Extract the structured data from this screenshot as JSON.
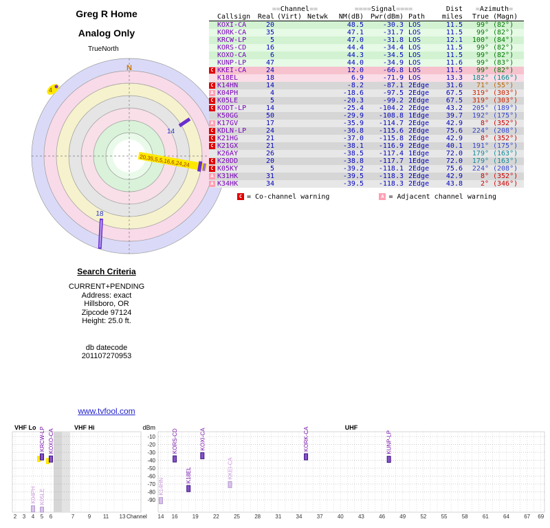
{
  "header": {
    "title_line1": "Greg R Home",
    "title_line2": "Analog Only",
    "north_label": "TrueNorth"
  },
  "table": {
    "h1": {
      "channel": {
        "pre": "==",
        "label": "Channel",
        "post": "=="
      },
      "signal": {
        "pre": "====",
        "label": "Signal",
        "post": "===="
      },
      "dist": {
        "label": "Dist"
      },
      "azimuth": {
        "pre": "=",
        "label": "Azimuth",
        "post": "="
      }
    },
    "h2": {
      "callsign": "Callsign",
      "real": "Real",
      "virt": "(Virt)",
      "netwk": "Netwk",
      "nm": "NM(dB)",
      "pwr": "Pwr(dBm)",
      "path": "Path",
      "miles": "miles",
      "true": "True",
      "magn": "(Magn)"
    },
    "rows": [
      {
        "marker": "",
        "callsign": "KOXI-CA",
        "real": "20",
        "nm": "48.5",
        "pwr": "-30.3",
        "path": "LOS",
        "miles": "11.5",
        "az_true": "99°",
        "az_magn": "(82°)",
        "tone": "tone-g1",
        "az_color": "#007700"
      },
      {
        "marker": "",
        "callsign": "KORK-CA",
        "real": "35",
        "nm": "47.1",
        "pwr": "-31.7",
        "path": "LOS",
        "miles": "11.5",
        "az_true": "99°",
        "az_magn": "(82°)",
        "tone": "tone-g2",
        "az_color": "#007700"
      },
      {
        "marker": "",
        "callsign": "KRCW-LP",
        "real": "5",
        "nm": "47.0",
        "pwr": "-31.8",
        "path": "LOS",
        "miles": "12.1",
        "az_true": "100°",
        "az_magn": "(84°)",
        "tone": "tone-g1",
        "az_color": "#007700"
      },
      {
        "marker": "",
        "callsign": "KORS-CD",
        "real": "16",
        "nm": "44.4",
        "pwr": "-34.4",
        "path": "LOS",
        "miles": "11.5",
        "az_true": "99°",
        "az_magn": "(82°)",
        "tone": "tone-g2",
        "az_color": "#007700"
      },
      {
        "marker": "",
        "callsign": "KOXO-CA",
        "real": "6",
        "nm": "44.3",
        "pwr": "-34.5",
        "path": "LOS",
        "miles": "11.5",
        "az_true": "99°",
        "az_magn": "(82°)",
        "tone": "tone-g1",
        "az_color": "#007700"
      },
      {
        "marker": "",
        "callsign": "KUNP-LP",
        "real": "47",
        "nm": "44.0",
        "pwr": "-34.9",
        "path": "LOS",
        "miles": "11.6",
        "az_true": "99°",
        "az_magn": "(83°)",
        "tone": "tone-g2",
        "az_color": "#007700"
      },
      {
        "marker": "C",
        "callsign": "KKEI-CA",
        "real": "24",
        "nm": "12.0",
        "pwr": "-66.8",
        "path": "LOS",
        "miles": "11.5",
        "az_true": "99°",
        "az_magn": "(82°)",
        "tone": "tone-p1",
        "az_color": "#007700"
      },
      {
        "marker": "",
        "callsign": "K18EL",
        "real": "18",
        "nm": "6.9",
        "pwr": "-71.9",
        "path": "LOS",
        "miles": "13.3",
        "az_true": "182°",
        "az_magn": "(166°)",
        "tone": "tone-p2",
        "az_color": "#008888"
      },
      {
        "marker": "C",
        "callsign": "K14HN",
        "real": "14",
        "nm": "-8.2",
        "pwr": "-87.1",
        "path": "2Edge",
        "miles": "31.6",
        "az_true": "71°",
        "az_magn": "(55°)",
        "tone": "tone-k1",
        "az_color": "#bb6600"
      },
      {
        "marker": "A",
        "callsign": "K04PH",
        "real": "4",
        "nm": "-18.6",
        "pwr": "-97.5",
        "path": "2Edge",
        "miles": "67.5",
        "az_true": "319°",
        "az_magn": "(303°)",
        "tone": "tone-k2",
        "az_color": "#cc2200"
      },
      {
        "marker": "C",
        "callsign": "K05LE",
        "real": "5",
        "nm": "-20.3",
        "pwr": "-99.2",
        "path": "2Edge",
        "miles": "67.5",
        "az_true": "319°",
        "az_magn": "(303°)",
        "tone": "tone-k1",
        "az_color": "#cc2200"
      },
      {
        "marker": "C",
        "callsign": "KODT-LP",
        "real": "14",
        "nm": "-25.4",
        "pwr": "-104.2",
        "path": "2Edge",
        "miles": "43.2",
        "az_true": "205°",
        "az_magn": "(189°)",
        "tone": "tone-k2",
        "az_color": "#3344cc"
      },
      {
        "marker": "",
        "callsign": "K50GG",
        "real": "50",
        "nm": "-29.9",
        "pwr": "-108.8",
        "path": "1Edge",
        "miles": "39.7",
        "az_true": "192°",
        "az_magn": "(175°)",
        "tone": "tone-k1",
        "az_color": "#3344cc"
      },
      {
        "marker": "A",
        "callsign": "K17GV",
        "real": "17",
        "nm": "-35.9",
        "pwr": "-114.7",
        "path": "2Edge",
        "miles": "42.9",
        "az_true": "8°",
        "az_magn": "(352°)",
        "tone": "tone-k2",
        "az_color": "#cc0000"
      },
      {
        "marker": "C",
        "callsign": "KDLN-LP",
        "real": "24",
        "nm": "-36.8",
        "pwr": "-115.6",
        "path": "2Edge",
        "miles": "75.6",
        "az_true": "224°",
        "az_magn": "(208°)",
        "tone": "tone-k1",
        "az_color": "#3344cc"
      },
      {
        "marker": "C",
        "callsign": "K21HG",
        "real": "21",
        "nm": "-37.0",
        "pwr": "-115.8",
        "path": "2Edge",
        "miles": "42.9",
        "az_true": "8°",
        "az_magn": "(352°)",
        "tone": "tone-k2",
        "az_color": "#cc0000"
      },
      {
        "marker": "C",
        "callsign": "K21GX",
        "real": "21",
        "nm": "-38.1",
        "pwr": "-116.9",
        "path": "2Edge",
        "miles": "40.1",
        "az_true": "191°",
        "az_magn": "(175°)",
        "tone": "tone-k1",
        "az_color": "#3344cc"
      },
      {
        "marker": "",
        "callsign": "K26AY",
        "real": "26",
        "nm": "-38.5",
        "pwr": "-117.4",
        "path": "1Edge",
        "miles": "72.0",
        "az_true": "179°",
        "az_magn": "(163°)",
        "tone": "tone-k2",
        "az_color": "#118899"
      },
      {
        "marker": "C",
        "callsign": "K20DD",
        "real": "20",
        "nm": "-38.8",
        "pwr": "-117.7",
        "path": "1Edge",
        "miles": "72.0",
        "az_true": "179°",
        "az_magn": "(163°)",
        "tone": "tone-k1",
        "az_color": "#118899"
      },
      {
        "marker": "C",
        "callsign": "K05KY",
        "real": "5",
        "nm": "-39.2",
        "pwr": "-118.1",
        "path": "2Edge",
        "miles": "75.6",
        "az_true": "224°",
        "az_magn": "(208°)",
        "tone": "tone-k2",
        "az_color": "#3344cc"
      },
      {
        "marker": "A",
        "callsign": "K31HK",
        "real": "31",
        "nm": "-39.5",
        "pwr": "-118.3",
        "path": "2Edge",
        "miles": "42.9",
        "az_true": "8°",
        "az_magn": "(352°)",
        "tone": "tone-k1",
        "az_color": "#cc0000"
      },
      {
        "marker": "A",
        "callsign": "K34HK",
        "real": "34",
        "nm": "-39.5",
        "pwr": "-118.3",
        "path": "2Edge",
        "miles": "43.8",
        "az_true": "2°",
        "az_magn": "(346°)",
        "tone": "tone-k2",
        "az_color": "#cc0000"
      }
    ]
  },
  "legend": {
    "co": {
      "icon": "C",
      "label": "= Co-channel warning"
    },
    "adj": {
      "icon": "A",
      "label": "= Adjacent channel warning"
    }
  },
  "search": {
    "title": "Search Criteria",
    "lines": [
      "CURRENT+PENDING",
      "Address: exact",
      "Hillsboro, OR",
      "Zipcode 97124",
      "Height: 25.0 ft."
    ],
    "datecode_label": "db datecode",
    "datecode": "201107270953"
  },
  "link": "www.tvfool.com",
  "colors": {
    "accent_purple": "#7a00bb",
    "value_blue": "#0000bb",
    "warning_red": "#e00000",
    "warning_pink": "#ff9fb4",
    "highlight_yellow": "#ffe800"
  },
  "chart_data": [
    {
      "type": "scatter",
      "name": "azimuth-radar-plot",
      "title": "Greg R Home / Analog Only azimuth plot",
      "north_label": "N",
      "markers": {
        "m4": "4",
        "m14": "14",
        "m18": "18",
        "cluster": "20,35,5,5,16,6,24,24"
      },
      "points": [
        {
          "label": "4",
          "azimuth_deg": 319
        },
        {
          "label": "14",
          "azimuth_deg": 71
        },
        {
          "label": "20,35,5,5,16,6,24,24",
          "azimuth_deg": 99
        },
        {
          "label": "18",
          "azimuth_deg": 182
        }
      ]
    },
    {
      "type": "bar",
      "name": "signal-strength-by-channel",
      "title": "",
      "xlabel": "Channel",
      "ylabel": "dBm",
      "ylim": [
        -105,
        -10
      ],
      "y_ticks": [
        -10,
        -20,
        -30,
        -40,
        -50,
        -60,
        -70,
        -80,
        -90
      ],
      "bands": [
        {
          "label": "VHF Lo"
        },
        {
          "label": "VHF Hi"
        },
        {
          "label": "UHF"
        }
      ],
      "left_panel_channels": [
        2,
        3,
        4,
        5,
        6,
        7,
        9,
        11,
        13
      ],
      "right_panel_channels": [
        14,
        16,
        19,
        22,
        25,
        28,
        31,
        34,
        37,
        40,
        43,
        46,
        49,
        52,
        55,
        58,
        61,
        64,
        67,
        69
      ],
      "points": [
        {
          "callsign": "K04PH",
          "channel": 4,
          "dbm": -97.5,
          "panel": "left",
          "faint": true
        },
        {
          "callsign": "KRCW-LP",
          "channel": 5,
          "dbm": -31.8,
          "panel": "left",
          "highlight": true
        },
        {
          "callsign": "K05LE",
          "channel": 5,
          "dbm": -99.2,
          "panel": "left",
          "faint": true
        },
        {
          "callsign": "KOXO-CA",
          "channel": 6,
          "dbm": -34.5,
          "panel": "left",
          "highlight": true
        },
        {
          "callsign": "K14HN",
          "channel": 14,
          "dbm": -87.1,
          "panel": "right",
          "faint": true
        },
        {
          "callsign": "KORS-CD",
          "channel": 16,
          "dbm": -34.4,
          "panel": "right"
        },
        {
          "callsign": "K18EL",
          "channel": 18,
          "dbm": -71.9,
          "panel": "right"
        },
        {
          "callsign": "KOXI-CA",
          "channel": 20,
          "dbm": -30.3,
          "panel": "right"
        },
        {
          "callsign": "KKEI-CA",
          "channel": 24,
          "dbm": -66.8,
          "panel": "right",
          "faint": true
        },
        {
          "callsign": "KORK-CA",
          "channel": 35,
          "dbm": -31.7,
          "panel": "right"
        },
        {
          "callsign": "KUNP-LP",
          "channel": 47,
          "dbm": -34.9,
          "panel": "right"
        }
      ]
    }
  ]
}
